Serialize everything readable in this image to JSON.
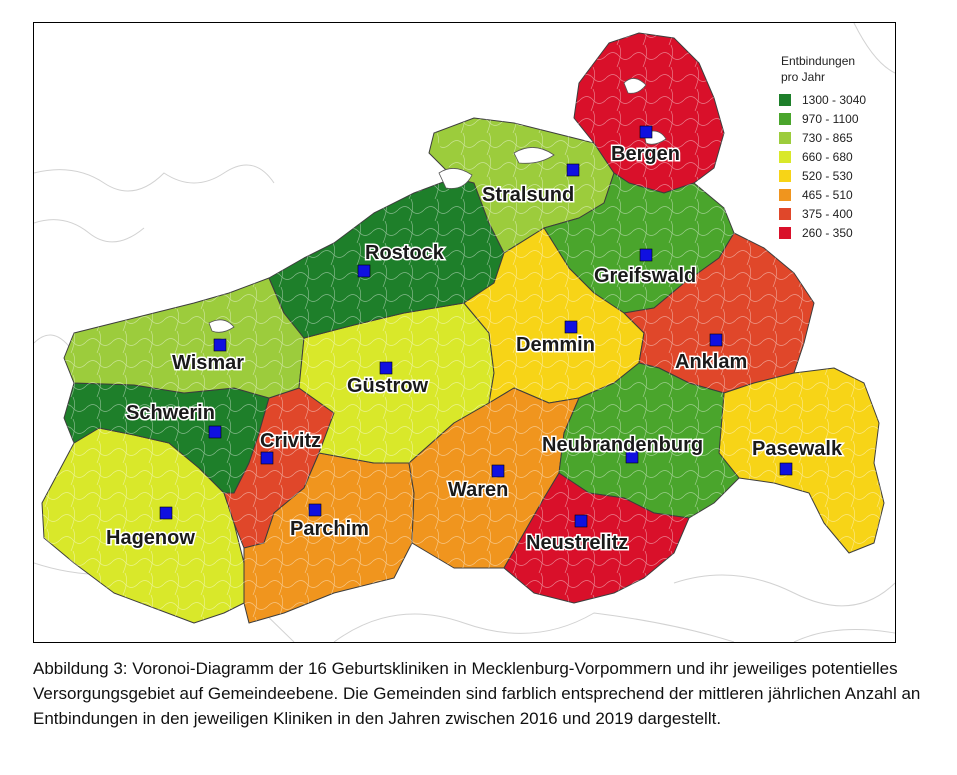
{
  "legend": {
    "title_line1": "Entbindungen",
    "title_line2": "pro Jahr",
    "classes": [
      {
        "range": "1300 - 3040",
        "color": "#1e7f2a"
      },
      {
        "range": "970 - 1100",
        "color": "#4aa52c"
      },
      {
        "range": "730 - 865",
        "color": "#9ccc3c"
      },
      {
        "range": "660 - 680",
        "color": "#d9e82a"
      },
      {
        "range": "520 - 530",
        "color": "#f7d417"
      },
      {
        "range": "465 - 510",
        "color": "#f0951e"
      },
      {
        "range": "375 - 400",
        "color": "#e0472a"
      },
      {
        "range": "260 - 350",
        "color": "#d9102a"
      }
    ]
  },
  "clinics": [
    {
      "name": "Bergen",
      "class": 7
    },
    {
      "name": "Stralsund",
      "class": 2
    },
    {
      "name": "Rostock",
      "class": 0
    },
    {
      "name": "Greifswald",
      "class": 1
    },
    {
      "name": "Wismar",
      "class": 2
    },
    {
      "name": "Demmin",
      "class": 4
    },
    {
      "name": "Anklam",
      "class": 6
    },
    {
      "name": "Güstrow",
      "class": 3
    },
    {
      "name": "Schwerin",
      "class": 0
    },
    {
      "name": "Crivitz",
      "class": 6
    },
    {
      "name": "Neubrandenburg",
      "class": 1
    },
    {
      "name": "Pasewalk",
      "class": 4
    },
    {
      "name": "Waren",
      "class": 5
    },
    {
      "name": "Hagenow",
      "class": 3
    },
    {
      "name": "Parchim",
      "class": 5
    },
    {
      "name": "Neustrelitz",
      "class": 7
    }
  ],
  "caption": "Abbildung 3: Voronoi-Diagramm der 16 Geburtskliniken in Mecklenburg-Vorpommern und ihr jeweiliges potentielles Versorgungsgebiet auf Gemeindeebene. Die Gemeinden sind farblich entsprechend der mittleren jährlichen Anzahl an Entbindungen in den jeweiligen Kliniken in den Jahren zwischen 2016 und 2019 dargestellt.",
  "marker_color": "#1010e0"
}
